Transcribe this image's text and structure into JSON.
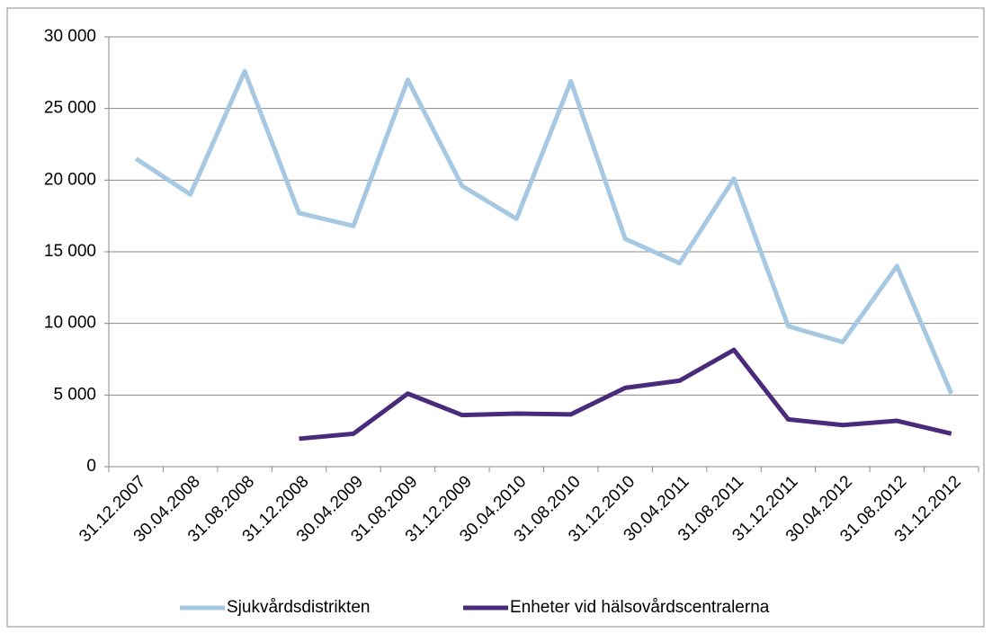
{
  "chart_data": {
    "type": "line",
    "categories": [
      "31.12.2007",
      "30.04.2008",
      "31.08.2008",
      "31.12.2008",
      "30.04.2009",
      "31.08.2009",
      "31.12.2009",
      "30.04.2010",
      "31.08.2010",
      "31.12.2010",
      "30.04.2011",
      "31.08.2011",
      "31.12.2011",
      "30.04.2012",
      "31.08.2012",
      "31.12.2012"
    ],
    "series": [
      {
        "name": "Sjukvårdsdistrikten",
        "color": "#a6c8e2",
        "values": [
          21500,
          19000,
          27600,
          17700,
          16800,
          27000,
          19600,
          17300,
          26900,
          15900,
          14200,
          20100,
          9800,
          8700,
          14000,
          5100
        ]
      },
      {
        "name": "Enheter vid hälsovårdscentralerna",
        "color": "#4a2a7a",
        "values": [
          null,
          null,
          null,
          1950,
          2300,
          5100,
          3600,
          3700,
          3650,
          5500,
          6000,
          8150,
          3300,
          2900,
          3200,
          2300
        ]
      }
    ],
    "ylim": [
      0,
      30000
    ],
    "yticks": [
      0,
      {
        "value": 5000,
        "label": "5 000"
      },
      {
        "value": 10000,
        "label": "10 000"
      },
      {
        "value": 15000,
        "label": "15 000"
      },
      {
        "value": 20000,
        "label": "20 000"
      },
      {
        "value": 25000,
        "label": "25 000"
      },
      {
        "value": 30000,
        "label": "30 000"
      }
    ],
    "grid": true,
    "legend": "bottom"
  }
}
